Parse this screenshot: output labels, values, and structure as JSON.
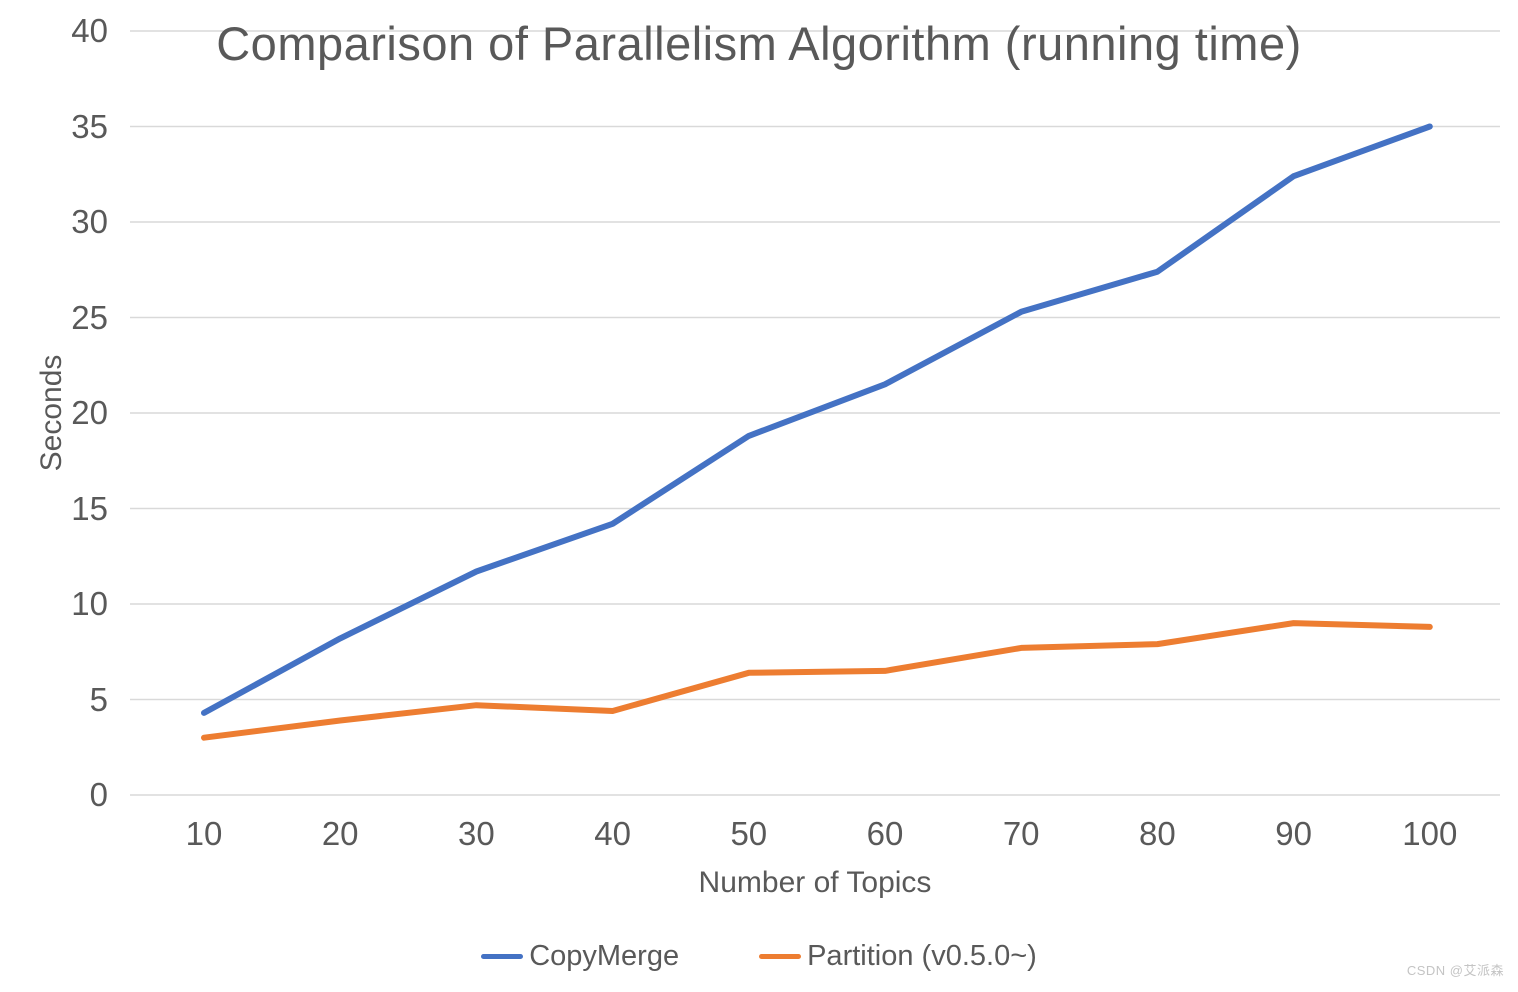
{
  "chart_data": {
    "type": "line",
    "title": "Comparison of Parallelism Algorithm (running time)",
    "xlabel": "Number of Topics",
    "ylabel": "Seconds",
    "x": [
      10,
      20,
      30,
      40,
      50,
      60,
      70,
      80,
      90,
      100
    ],
    "series": [
      {
        "name": "CopyMerge",
        "color": "#4472C4",
        "values": [
          4.3,
          8.2,
          11.7,
          14.2,
          18.8,
          21.5,
          25.3,
          27.4,
          32.4,
          35.0
        ]
      },
      {
        "name": "Partition (v0.5.0~)",
        "color": "#ED7D31",
        "values": [
          3.0,
          3.9,
          4.7,
          4.4,
          6.4,
          6.5,
          7.7,
          7.9,
          9.0,
          8.8
        ]
      }
    ],
    "ylim": [
      0,
      40
    ],
    "yticks": [
      0,
      5,
      10,
      15,
      20,
      25,
      30,
      35,
      40
    ],
    "grid": true,
    "gridline_color": "#D9D9D9",
    "text_color": "#595959",
    "legend_position": "bottom"
  },
  "watermark": {
    "text": "CSDN @艾派森"
  }
}
